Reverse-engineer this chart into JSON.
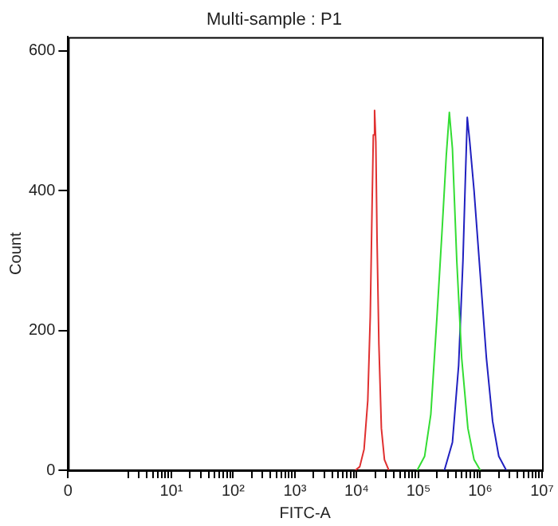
{
  "chart_data": {
    "type": "line",
    "title": "Multi-sample : P1",
    "xlabel": "FITC-A",
    "ylabel": "Count",
    "log": "x",
    "grid": false,
    "legend": false,
    "marker": "none",
    "line_style": "solid",
    "xlim": [
      0,
      10000000
    ],
    "xticks": [
      0,
      {
        "value": 2,
        "label": null
      },
      {
        "value": 3,
        "label": null
      },
      {
        "value": 4,
        "label": null
      },
      {
        "value": 5,
        "label": null
      },
      {
        "value": 6,
        "label": null
      },
      {
        "value": 7,
        "label": null
      },
      {
        "value": 8,
        "label": null
      },
      {
        "value": 9,
        "label": null
      },
      {
        "value": 10,
        "label": "10¹"
      },
      {
        "value": 20,
        "label": null
      },
      {
        "value": 30,
        "label": null
      },
      {
        "value": 40,
        "label": null
      },
      {
        "value": 50,
        "label": null
      },
      {
        "value": 60,
        "label": null
      },
      {
        "value": 70,
        "label": null
      },
      {
        "value": 80,
        "label": null
      },
      {
        "value": 90,
        "label": null
      },
      {
        "value": 100,
        "label": "10²"
      },
      {
        "value": 200,
        "label": null
      },
      {
        "value": 300,
        "label": null
      },
      {
        "value": 400,
        "label": null
      },
      {
        "value": 500,
        "label": null
      },
      {
        "value": 600,
        "label": null
      },
      {
        "value": 700,
        "label": null
      },
      {
        "value": 800,
        "label": null
      },
      {
        "value": 900,
        "label": null
      },
      {
        "value": 1000,
        "label": "10³"
      },
      {
        "value": 2000,
        "label": null
      },
      {
        "value": 3000,
        "label": null
      },
      {
        "value": 4000,
        "label": null
      },
      {
        "value": 5000,
        "label": null
      },
      {
        "value": 6000,
        "label": null
      },
      {
        "value": 7000,
        "label": null
      },
      {
        "value": 8000,
        "label": null
      },
      {
        "value": 9000,
        "label": null
      },
      {
        "value": 10000,
        "label": "10⁴"
      },
      {
        "value": 20000,
        "label": null
      },
      {
        "value": 30000,
        "label": null
      },
      {
        "value": 40000,
        "label": null
      },
      {
        "value": 50000,
        "label": null
      },
      {
        "value": 60000,
        "label": null
      },
      {
        "value": 70000,
        "label": null
      },
      {
        "value": 80000,
        "label": null
      },
      {
        "value": 90000,
        "label": null
      },
      {
        "value": 100000,
        "label": "10⁵"
      },
      {
        "value": 200000,
        "label": null
      },
      {
        "value": 300000,
        "label": null
      },
      {
        "value": 400000,
        "label": null
      },
      {
        "value": 500000,
        "label": null
      },
      {
        "value": 600000,
        "label": null
      },
      {
        "value": 700000,
        "label": null
      },
      {
        "value": 800000,
        "label": null
      },
      {
        "value": 900000,
        "label": null
      },
      {
        "value": 1000000,
        "label": "10⁶"
      },
      {
        "value": 2000000,
        "label": null
      },
      {
        "value": 3000000,
        "label": null
      },
      {
        "value": 4000000,
        "label": null
      },
      {
        "value": 5000000,
        "label": null
      },
      {
        "value": 6000000,
        "label": null
      },
      {
        "value": 7000000,
        "label": null
      },
      {
        "value": 8000000,
        "label": null
      },
      {
        "value": 9000000,
        "label": null
      },
      {
        "value": 10000000,
        "label": "10⁷"
      }
    ],
    "ylim": [
      0,
      620
    ],
    "yticks": [
      0,
      200,
      400,
      600
    ],
    "series": [
      {
        "color": "#e03030",
        "x": [
          9550,
          11220,
          13180,
          15140,
          16600,
          17780,
          18620,
          19500,
          20420,
          21380,
          22910,
          25120,
          28180,
          33110
        ],
        "values": [
          0,
          5,
          30,
          100,
          220,
          380,
          480,
          515,
          470,
          330,
          180,
          60,
          15,
          0
        ]
      },
      {
        "color": "#33dd33",
        "x": [
          95500,
          125900,
          158500,
          199500,
          239900,
          281800,
          316200,
          354800,
          416900,
          501200,
          631000,
          794300,
          1000000
        ],
        "values": [
          0,
          20,
          80,
          220,
          340,
          450,
          512,
          460,
          300,
          160,
          60,
          15,
          0
        ]
      },
      {
        "color": "#2020c0",
        "x": [
          263000,
          354800,
          446700,
          524800,
          575400,
          616600,
          676100,
          794300,
          1000000,
          1259000,
          1585000,
          1995000,
          2630000
        ],
        "values": [
          0,
          40,
          150,
          300,
          420,
          505,
          470,
          400,
          280,
          160,
          70,
          20,
          0
        ]
      }
    ]
  }
}
